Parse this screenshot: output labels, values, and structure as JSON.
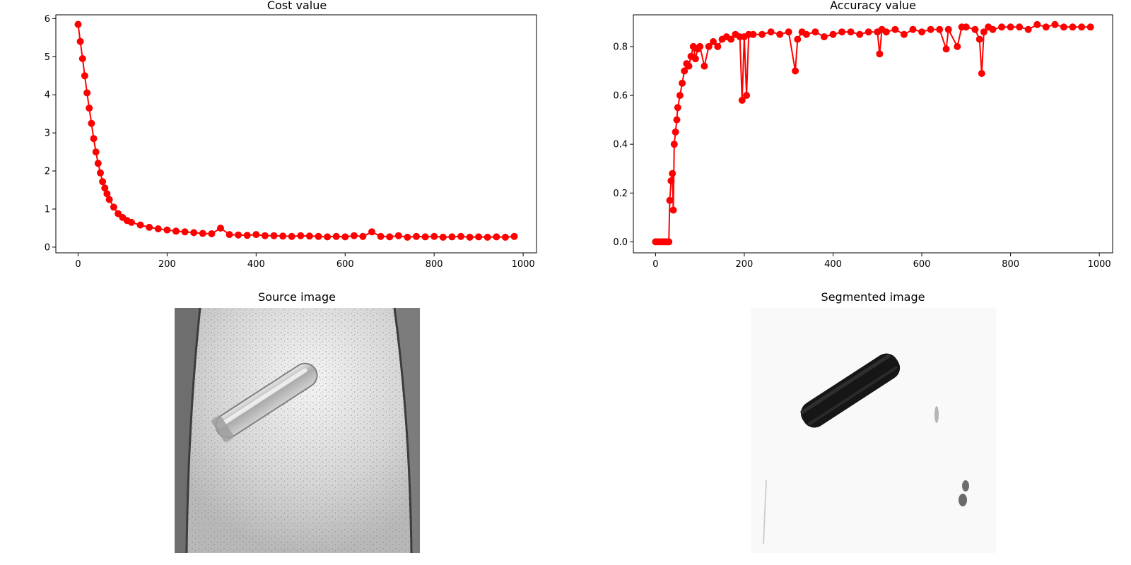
{
  "colors": {
    "series": "#ff0000",
    "axes": "#000000",
    "background": "#ffffff"
  },
  "chart_data": [
    {
      "type": "line",
      "title": "Cost value",
      "xlabel": "",
      "ylabel": "",
      "xlim": [
        -50,
        1030
      ],
      "ylim": [
        -0.15,
        6.1
      ],
      "x_ticks": [
        0,
        200,
        400,
        600,
        800,
        1000
      ],
      "y_ticks": [
        0,
        1,
        2,
        3,
        4,
        5,
        6
      ],
      "grid": false,
      "marker": "circle",
      "series": [
        {
          "x": [
            0,
            5,
            10,
            15,
            20,
            25,
            30,
            35,
            40,
            45,
            50,
            55,
            60,
            65,
            70,
            80,
            90,
            100,
            110,
            120,
            140,
            160,
            180,
            200,
            220,
            240,
            260,
            280,
            300,
            320,
            340,
            360,
            380,
            400,
            420,
            440,
            460,
            480,
            500,
            520,
            540,
            560,
            580,
            600,
            620,
            640,
            660,
            680,
            700,
            720,
            740,
            760,
            780,
            800,
            820,
            840,
            860,
            880,
            900,
            920,
            940,
            960,
            980
          ],
          "y": [
            5.85,
            5.4,
            4.95,
            4.5,
            4.05,
            3.65,
            3.25,
            2.85,
            2.5,
            2.2,
            1.95,
            1.72,
            1.55,
            1.4,
            1.25,
            1.05,
            0.88,
            0.78,
            0.7,
            0.65,
            0.58,
            0.52,
            0.48,
            0.45,
            0.42,
            0.4,
            0.38,
            0.36,
            0.35,
            0.5,
            0.33,
            0.32,
            0.31,
            0.33,
            0.3,
            0.3,
            0.29,
            0.28,
            0.3,
            0.29,
            0.28,
            0.27,
            0.28,
            0.27,
            0.3,
            0.28,
            0.4,
            0.28,
            0.27,
            0.3,
            0.26,
            0.28,
            0.27,
            0.28,
            0.26,
            0.27,
            0.28,
            0.26,
            0.27,
            0.26,
            0.27,
            0.26,
            0.28
          ]
        }
      ]
    },
    {
      "type": "line",
      "title": "Accuracy value",
      "xlabel": "",
      "ylabel": "",
      "xlim": [
        -50,
        1030
      ],
      "ylim": [
        -0.045,
        0.93
      ],
      "x_ticks": [
        0,
        200,
        400,
        600,
        800,
        1000
      ],
      "y_ticks": [
        0.0,
        0.2,
        0.4,
        0.6,
        0.8
      ],
      "grid": false,
      "marker": "circle",
      "series": [
        {
          "x": [
            0,
            5,
            10,
            15,
            20,
            25,
            30,
            32,
            35,
            38,
            40,
            42,
            45,
            48,
            50,
            55,
            60,
            65,
            70,
            75,
            80,
            85,
            90,
            95,
            100,
            110,
            120,
            130,
            140,
            150,
            160,
            170,
            180,
            190,
            195,
            200,
            205,
            210,
            220,
            240,
            260,
            280,
            300,
            315,
            320,
            330,
            340,
            360,
            380,
            400,
            420,
            440,
            460,
            480,
            500,
            505,
            510,
            520,
            540,
            560,
            580,
            600,
            620,
            640,
            655,
            660,
            680,
            690,
            700,
            720,
            730,
            735,
            740,
            750,
            760,
            780,
            800,
            820,
            840,
            860,
            880,
            900,
            920,
            940,
            960,
            980
          ],
          "y": [
            0.0,
            0.0,
            0.0,
            0.0,
            0.0,
            0.0,
            0.0,
            0.17,
            0.25,
            0.28,
            0.13,
            0.4,
            0.45,
            0.5,
            0.55,
            0.6,
            0.65,
            0.7,
            0.73,
            0.72,
            0.76,
            0.8,
            0.75,
            0.79,
            0.8,
            0.72,
            0.8,
            0.82,
            0.8,
            0.83,
            0.84,
            0.83,
            0.85,
            0.84,
            0.58,
            0.84,
            0.6,
            0.85,
            0.85,
            0.85,
            0.86,
            0.85,
            0.86,
            0.7,
            0.83,
            0.86,
            0.85,
            0.86,
            0.84,
            0.85,
            0.86,
            0.86,
            0.85,
            0.86,
            0.86,
            0.77,
            0.87,
            0.86,
            0.87,
            0.85,
            0.87,
            0.86,
            0.87,
            0.87,
            0.79,
            0.87,
            0.8,
            0.88,
            0.88,
            0.87,
            0.83,
            0.69,
            0.86,
            0.88,
            0.87,
            0.88,
            0.88,
            0.88,
            0.87,
            0.89,
            0.88,
            0.89,
            0.88,
            0.88,
            0.88,
            0.88
          ]
        }
      ]
    }
  ],
  "images": {
    "source": {
      "title": "Source image"
    },
    "segmented": {
      "title": "Segmented image"
    }
  }
}
